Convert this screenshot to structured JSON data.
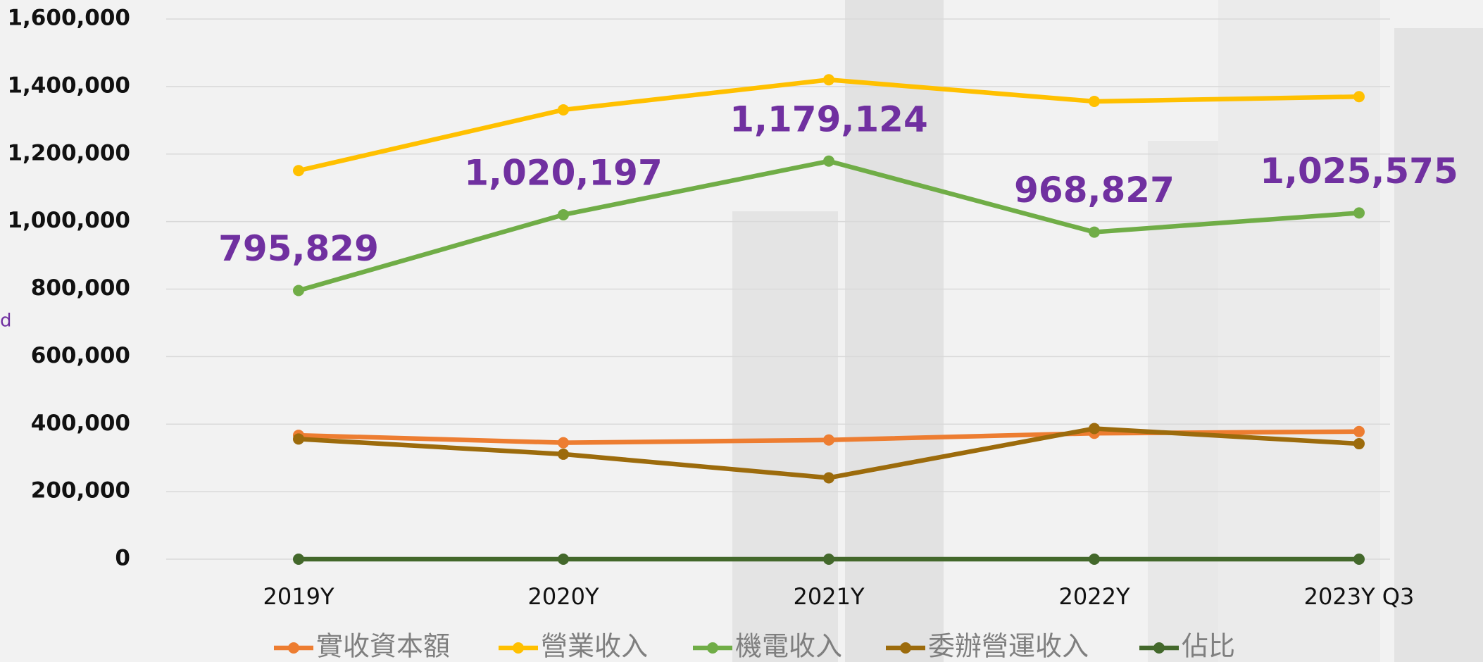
{
  "chart_data": {
    "type": "line",
    "y_axis_label": "d",
    "categories": [
      "2019Y",
      "2020Y",
      "2021Y",
      "2022Y",
      "2023Y Q3"
    ],
    "series": [
      {
        "name": "實收資本額",
        "color": "#ED7D31",
        "values": [
          367000,
          345000,
          353000,
          373000,
          378000
        ]
      },
      {
        "name": "營業收入",
        "color": "#FFC000",
        "values": [
          1151000,
          1331000,
          1420000,
          1356000,
          1370000
        ]
      },
      {
        "name": "機電收入",
        "color": "#70AD47",
        "values": [
          795829,
          1020197,
          1179124,
          968827,
          1025575
        ],
        "value_labels": [
          "795,829",
          "1,020,197",
          "1,179,124",
          "968,827",
          "1,025,575"
        ],
        "label_color": "#7030A0"
      },
      {
        "name": "委辦營運收入",
        "color": "#9C6B0C",
        "values": [
          356000,
          311000,
          241000,
          387000,
          342000
        ]
      },
      {
        "name": "佔比",
        "color": "#43682B",
        "values": [
          0,
          0,
          0,
          0,
          0
        ]
      }
    ],
    "ylim": [
      0,
      1600000
    ],
    "yticks": [
      0,
      {
        "value": 200000,
        "label": "200,000"
      },
      {
        "value": 400000,
        "label": "400,000"
      },
      {
        "value": 600000,
        "label": "600,000"
      },
      {
        "value": 800000,
        "label": "800,000"
      },
      {
        "value": 1000000,
        "label": "1,000,000"
      },
      {
        "value": 1200000,
        "label": "1,200,000"
      },
      {
        "value": 1400000,
        "label": "1,400,000"
      },
      {
        "value": 1600000,
        "label": "1,600,000"
      }
    ],
    "grid": true
  }
}
